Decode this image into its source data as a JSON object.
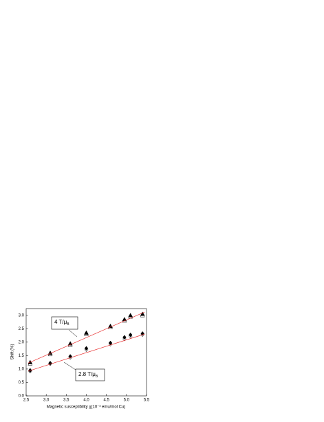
{
  "chart_data": {
    "type": "scatter",
    "x_label": "Magnetic susceptibility χ(10⁻³ emu/mol Cu)",
    "y_label": "Shift (%)",
    "xlim": [
      2.5,
      5.5
    ],
    "ylim": [
      0,
      3.25
    ],
    "xticks": [
      {
        "value": 2.5,
        "label": "2.5"
      },
      {
        "value": 3,
        "label": "3.0"
      },
      {
        "value": 3.5,
        "label": "3.5"
      },
      {
        "value": 4,
        "label": "4.0"
      },
      {
        "value": 4.5,
        "label": "4.5"
      },
      {
        "value": 5,
        "label": "5.0"
      },
      {
        "value": 5.5,
        "label": "5.5"
      }
    ],
    "yticks": [
      {
        "value": 0,
        "label": "0.0"
      },
      {
        "value": 0.5,
        "label": "0.5"
      },
      {
        "value": 1,
        "label": "1.0"
      },
      {
        "value": 1.5,
        "label": "1.5"
      },
      {
        "value": 2,
        "label": "2.0"
      },
      {
        "value": 2.5,
        "label": "2.5"
      },
      {
        "value": 3,
        "label": "3.0"
      }
    ],
    "series": [
      {
        "marker": "triangle",
        "filled": true,
        "color": "#000000",
        "x": [
          2.6,
          3.1,
          3.6,
          4.0,
          4.6,
          4.95,
          5.1,
          5.4
        ],
        "values": [
          1.25,
          1.6,
          1.95,
          2.35,
          2.6,
          2.85,
          3.0,
          3.05
        ]
      },
      {
        "marker": "triangle",
        "filled": false,
        "color": "#000000",
        "x": [
          2.6,
          3.1,
          3.6,
          4.0,
          4.6,
          4.95,
          5.1,
          5.4
        ],
        "values": [
          1.2,
          1.55,
          1.9,
          2.3,
          2.55,
          2.8,
          2.95,
          3.0
        ]
      },
      {
        "marker": "diamond",
        "filled": true,
        "color": "#000000",
        "x": [
          2.6,
          3.1,
          3.6,
          4.0,
          4.6,
          4.95,
          5.1,
          5.4
        ],
        "values": [
          0.95,
          1.22,
          1.47,
          1.77,
          1.97,
          2.18,
          2.27,
          2.32
        ]
      },
      {
        "marker": "diamond",
        "filled": false,
        "color": "#000000",
        "x": [
          2.6,
          3.1,
          3.6,
          4.0,
          4.6,
          4.95,
          5.1,
          5.4
        ],
        "values": [
          0.92,
          1.2,
          1.43,
          1.72,
          1.93,
          2.12,
          2.22,
          2.28
        ]
      },
      {
        "marker": "line",
        "color": "#e83030",
        "x": [
          2.55,
          5.45
        ],
        "values": [
          1.22,
          3.12
        ]
      },
      {
        "marker": "line",
        "color": "#e83030",
        "x": [
          2.55,
          5.45
        ],
        "values": [
          0.92,
          2.3
        ]
      }
    ],
    "annotations": [
      {
        "text": "4 T/μ",
        "sub": "B"
      },
      {
        "text": "2.8 T/μ",
        "sub": "B"
      }
    ]
  }
}
